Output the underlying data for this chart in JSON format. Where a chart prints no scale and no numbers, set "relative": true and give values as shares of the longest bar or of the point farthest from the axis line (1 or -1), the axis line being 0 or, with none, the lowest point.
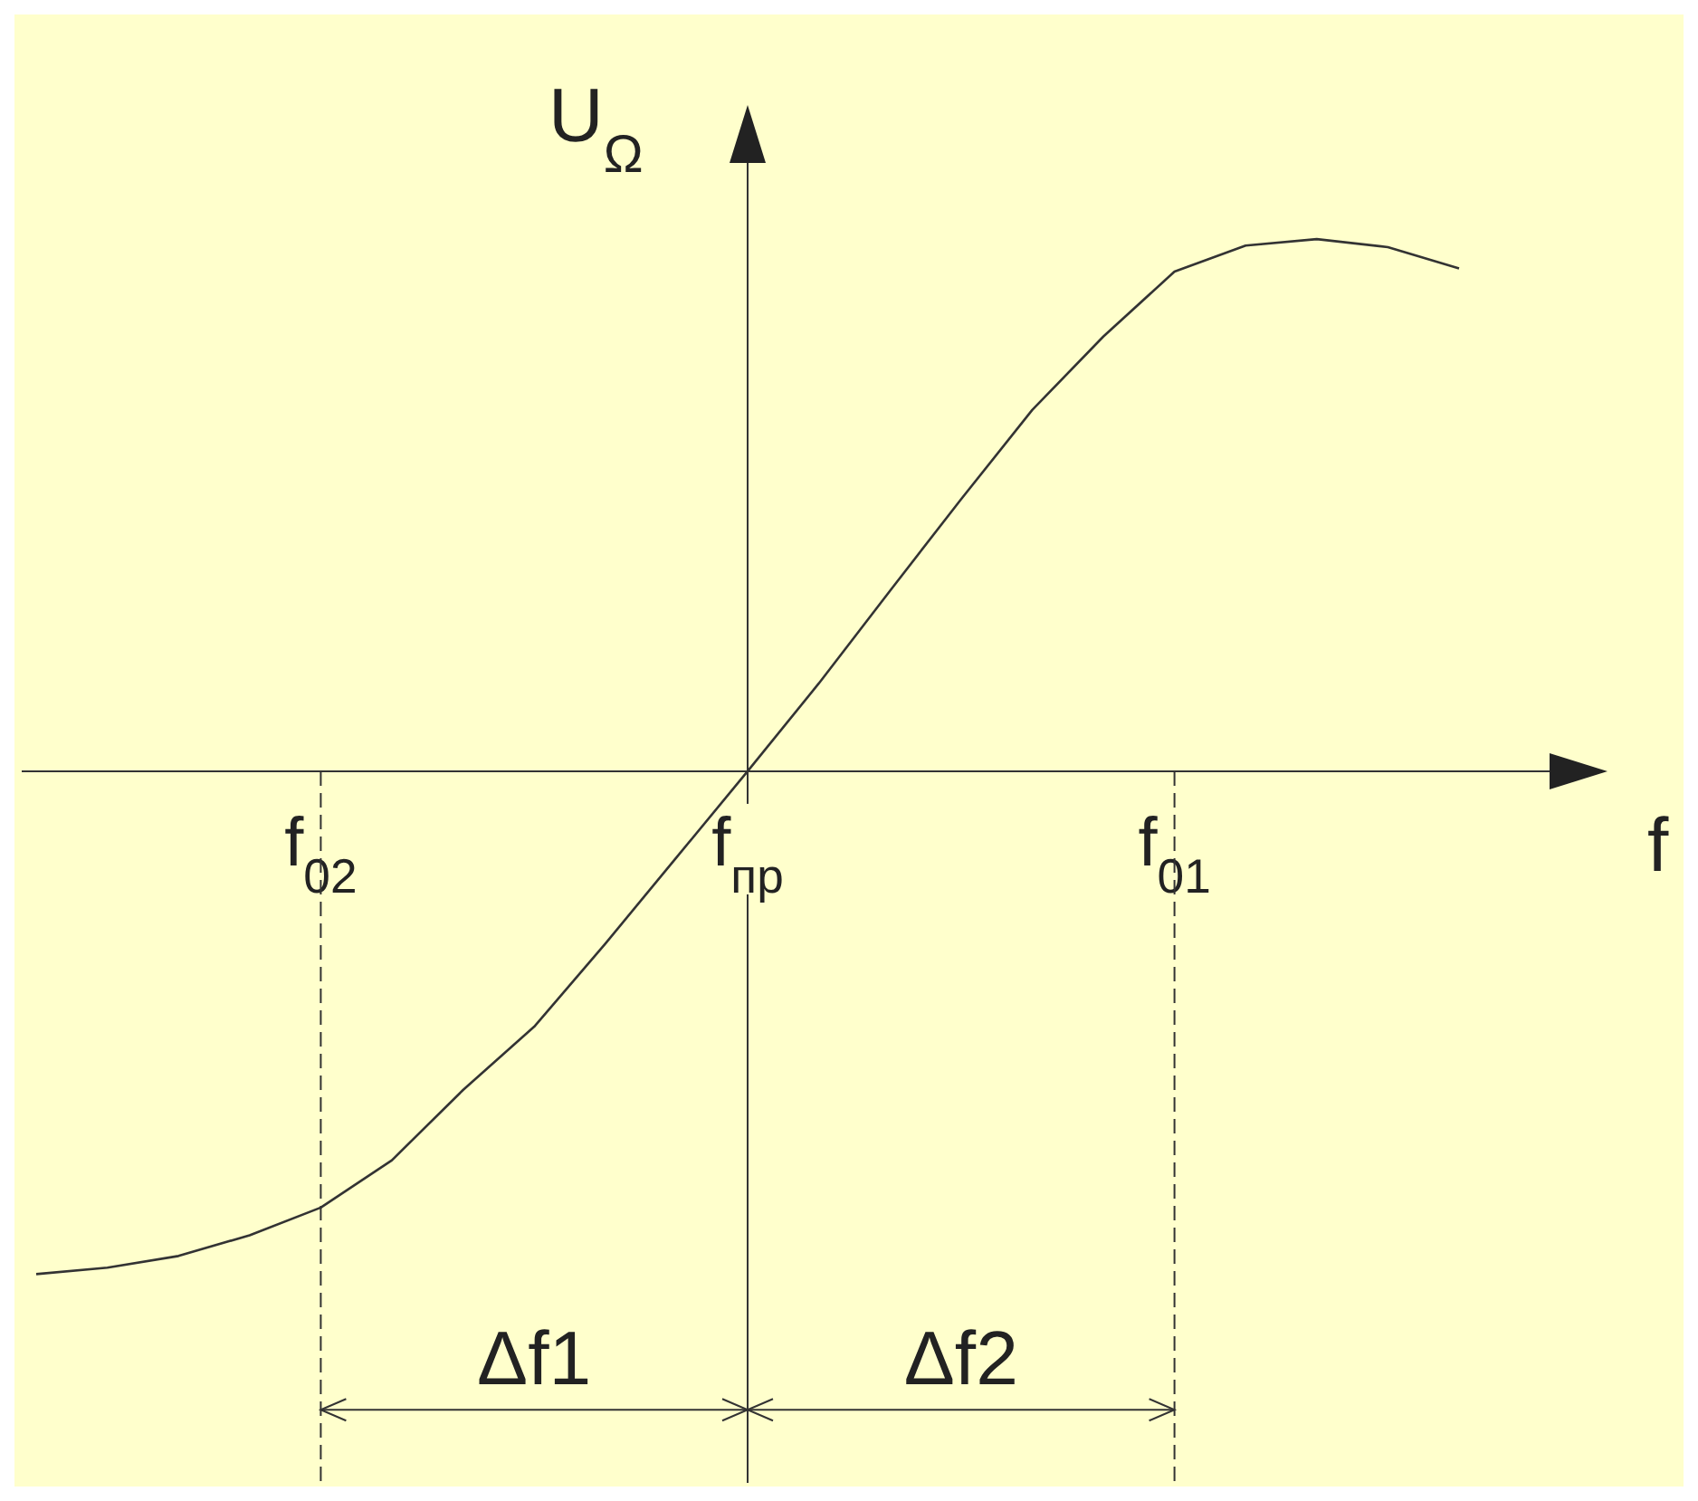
{
  "chart_data": {
    "type": "line",
    "xlabel": "f",
    "ylabel": "U$_{Ω}$",
    "relative": true,
    "categories": [
      null,
      null,
      null,
      null,
      "f$_{02}$",
      null,
      null,
      null,
      null,
      null,
      "f$_{пр}$",
      null,
      null,
      null,
      null,
      null,
      "f$_{01}$",
      null,
      null,
      null,
      null
    ],
    "values": [
      -0.945,
      -0.933,
      -0.911,
      -0.872,
      -0.82,
      -0.731,
      -0.599,
      -0.48,
      -0.324,
      -0.162,
      0,
      0.165,
      0.339,
      0.511,
      0.679,
      0.817,
      0.939,
      0.988,
      1,
      0.985,
      0.945
    ],
    "color": "#333333",
    "ref_lines": [
      {
        "axis": "x",
        "value": "f$_{02}$",
        "line_style": "dashed"
      },
      {
        "axis": "x",
        "value": "f$_{01}$",
        "line_style": "dashed"
      }
    ],
    "annotations": [
      "Δf1",
      "Δf2"
    ]
  }
}
